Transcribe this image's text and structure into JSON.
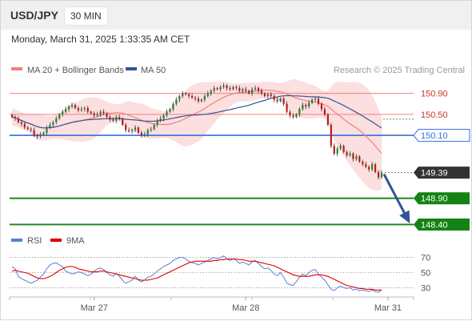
{
  "header": {
    "symbol": "USD/JPY",
    "timeframe": "30 MIN",
    "datetime": "Monday, March 31, 2025 1:33:35 AM CET"
  },
  "legend": {
    "ma20": {
      "label": "MA 20 + Bollinger Bands",
      "color": "#f08080"
    },
    "ma50": {
      "label": "MA 50",
      "color": "#2f5597"
    },
    "credit": "Research © 2025 Trading Central"
  },
  "colors": {
    "up": "#2e7d32",
    "down": "#b71c1c",
    "pivot": "#2f6fe0",
    "support": "#148214",
    "resistance": "#f08080",
    "arrow": "#2f5597",
    "band": "#fbd9d9"
  },
  "chart_data": [
    {
      "type": "candlestick",
      "title": "USD/JPY",
      "timeframe": "30 MIN",
      "ylim": [
        148.3,
        151.2
      ],
      "x_ticks": [
        {
          "label": "Mar 27",
          "idx": 25
        },
        {
          "label": "Mar 28",
          "idx": 73
        },
        {
          "label": "Mar 31",
          "idx": 118
        }
      ],
      "levels": [
        {
          "value": 150.9,
          "label": "150.90",
          "kind": "resistance"
        },
        {
          "value": 150.5,
          "label": "150.50",
          "kind": "resistance"
        },
        {
          "value": 150.1,
          "label": "150.10",
          "kind": "pivot"
        },
        {
          "value": 149.39,
          "label": "149.39",
          "kind": "last"
        },
        {
          "value": 148.9,
          "label": "148.90",
          "kind": "support"
        },
        {
          "value": 148.4,
          "label": "148.40",
          "kind": "support"
        }
      ],
      "closes": [
        150.45,
        150.42,
        150.35,
        150.32,
        150.25,
        150.22,
        150.2,
        150.1,
        150.08,
        150.12,
        150.15,
        150.25,
        150.3,
        150.35,
        150.42,
        150.5,
        150.55,
        150.6,
        150.65,
        150.68,
        150.62,
        150.58,
        150.6,
        150.62,
        150.55,
        150.52,
        150.48,
        150.5,
        150.55,
        150.52,
        150.45,
        150.4,
        150.38,
        150.45,
        150.42,
        150.3,
        150.2,
        150.18,
        150.2,
        150.25,
        150.15,
        150.1,
        150.12,
        150.2,
        150.22,
        150.3,
        150.38,
        150.42,
        150.48,
        150.55,
        150.6,
        150.7,
        150.78,
        150.85,
        150.9,
        150.88,
        150.85,
        150.82,
        150.8,
        150.75,
        150.78,
        150.85,
        150.9,
        150.95,
        151.0,
        150.98,
        151.02,
        151.05,
        151.0,
        150.98,
        151.02,
        151.0,
        150.95,
        150.98,
        150.95,
        150.9,
        150.98,
        151.0,
        150.95,
        150.9,
        150.85,
        150.88,
        150.85,
        150.78,
        150.75,
        150.8,
        150.7,
        150.55,
        150.48,
        150.45,
        150.5,
        150.6,
        150.68,
        150.65,
        150.72,
        150.78,
        150.8,
        150.7,
        150.6,
        150.5,
        150.3,
        149.9,
        149.75,
        149.85,
        149.9,
        149.78,
        149.72,
        149.75,
        149.65,
        149.7,
        149.6,
        149.55,
        149.5,
        149.45,
        149.55,
        149.4,
        149.3,
        149.39
      ],
      "projection": {
        "from": 149.39,
        "to": 148.4
      },
      "legend": [
        "MA 20 + Bollinger Bands",
        "MA 50"
      ]
    },
    {
      "type": "line",
      "title": "RSI",
      "ylim": [
        22,
        78
      ],
      "y_ticks": [
        70,
        50,
        30
      ],
      "series": [
        {
          "name": "RSI",
          "color": "#5b7fd4",
          "values": [
            58,
            55,
            45,
            42,
            40,
            38,
            36,
            38,
            40,
            44,
            48,
            55,
            60,
            62,
            63,
            60,
            58,
            52,
            50,
            48,
            49,
            51,
            50,
            48,
            46,
            48,
            52,
            55,
            56,
            54,
            50,
            47,
            45,
            49,
            45,
            40,
            36,
            38,
            40,
            45,
            40,
            38,
            40,
            44,
            45,
            48,
            52,
            55,
            58,
            60,
            62,
            66,
            68,
            70,
            70,
            68,
            65,
            63,
            62,
            60,
            62,
            64,
            66,
            68,
            70,
            68,
            70,
            72,
            68,
            66,
            68,
            66,
            62,
            64,
            62,
            60,
            64,
            66,
            62,
            58,
            55,
            56,
            53,
            48,
            46,
            50,
            44,
            36,
            34,
            33,
            38,
            44,
            48,
            46,
            50,
            53,
            54,
            48,
            44,
            40,
            34,
            28,
            26,
            30,
            32,
            30,
            29,
            30,
            27,
            28,
            26,
            27,
            26,
            25,
            27,
            25,
            24,
            27
          ]
        },
        {
          "name": "9MA",
          "color": "#e00000",
          "values": [
            52,
            53,
            52,
            51,
            50,
            49,
            47,
            45,
            43,
            42,
            42,
            43,
            45,
            47,
            50,
            53,
            55,
            57,
            58,
            58,
            57,
            55,
            54,
            53,
            52,
            51,
            51,
            51,
            52,
            52,
            51,
            50,
            49,
            48,
            47,
            46,
            45,
            44,
            43,
            42,
            41,
            40,
            40,
            40,
            41,
            42,
            43,
            45,
            47,
            49,
            51,
            53,
            55,
            57,
            59,
            61,
            63,
            64,
            65,
            65,
            65,
            65,
            65,
            65,
            66,
            66,
            67,
            67,
            68,
            68,
            68,
            68,
            67,
            67,
            66,
            65,
            65,
            65,
            64,
            63,
            62,
            61,
            60,
            59,
            57,
            55,
            53,
            51,
            49,
            47,
            46,
            45,
            45,
            45,
            45,
            46,
            47,
            47,
            47,
            46,
            45,
            43,
            41,
            39,
            37,
            35,
            33,
            32,
            31,
            30,
            29,
            29,
            28,
            28,
            28,
            27,
            27,
            27
          ]
        }
      ],
      "legend": [
        "RSI",
        "9MA"
      ]
    }
  ]
}
